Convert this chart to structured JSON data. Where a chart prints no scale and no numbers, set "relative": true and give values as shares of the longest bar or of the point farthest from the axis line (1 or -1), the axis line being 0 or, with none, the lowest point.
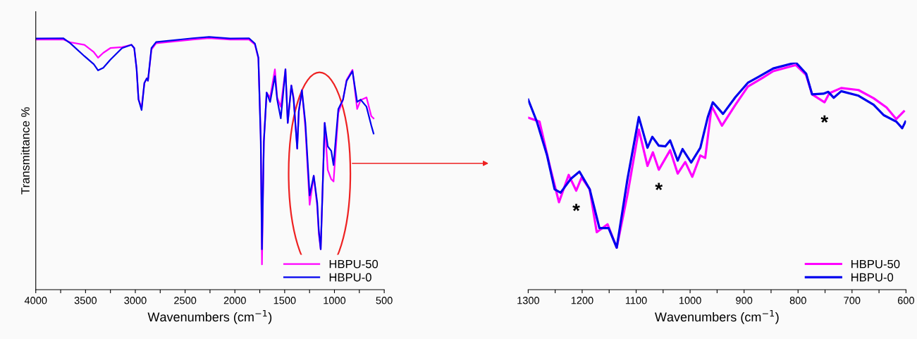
{
  "chart_data": [
    {
      "type": "line",
      "relative": true,
      "xlabel": "Wavenumbers (cm$^{−1}$)",
      "ylabel": "Transmittance %",
      "xlim": [
        4000,
        500
      ],
      "xticks": [
        4000,
        {
          "value": 3750,
          "label": null
        },
        3500,
        {
          "value": 3250,
          "label": null
        },
        3000,
        {
          "value": 2750,
          "label": null
        },
        2500,
        {
          "value": 2250,
          "label": null
        },
        2000,
        {
          "value": 1750,
          "label": null
        },
        1500,
        {
          "value": 1250,
          "label": null
        },
        1000,
        {
          "value": 750,
          "label": null
        },
        500
      ],
      "tick_labels": "x",
      "legend": "bottom right",
      "grid": false,
      "x": [
        3995,
        3724,
        3653,
        3511,
        3417,
        3374,
        3322,
        3251,
        3133,
        3039,
        3011,
        2987,
        2968,
        2937,
        2909,
        2885,
        2873,
        2838,
        2791,
        2425,
        2259,
        2047,
        1858,
        1799,
        1764,
        1740,
        1728,
        1709,
        1681,
        1646,
        1598,
        1575,
        1539,
        1492,
        1469,
        1433,
        1410,
        1374,
        1358,
        1327,
        1292,
        1249,
        1208,
        1173,
        1157,
        1138,
        1098,
        1067,
        1032,
        1009,
        961,
        914,
        878,
        819,
        772,
        737,
        678,
        630,
        607
      ],
      "series": [
        {
          "name": "HBPU-50",
          "color": "#ff00ff",
          "values": [
            0.99,
            0.99,
            0.979,
            0.969,
            0.94,
            0.918,
            0.937,
            0.956,
            0.96,
            0.969,
            0.956,
            0.873,
            0.753,
            0.72,
            0.818,
            0.836,
            0.827,
            0.95,
            0.975,
            0.99,
            0.995,
            0.99,
            0.99,
            0.97,
            0.915,
            0.61,
            0.1,
            0.586,
            0.78,
            0.76,
            0.872,
            0.76,
            0.724,
            0.872,
            0.66,
            0.808,
            0.76,
            0.558,
            0.706,
            0.79,
            0.64,
            0.336,
            0.451,
            0.33,
            0.22,
            0.16,
            0.66,
            0.474,
            0.437,
            0.428,
            0.7,
            0.752,
            0.83,
            0.87,
            0.715,
            0.75,
            0.761,
            0.687,
            0.678
          ]
        },
        {
          "name": "HBPU-0",
          "color": "#0000ee",
          "values": [
            0.994,
            0.995,
            0.975,
            0.924,
            0.892,
            0.868,
            0.878,
            0.91,
            0.956,
            0.969,
            0.956,
            0.873,
            0.753,
            0.711,
            0.818,
            0.836,
            0.827,
            0.956,
            0.98,
            0.995,
            1.0,
            0.994,
            0.995,
            0.974,
            0.919,
            0.586,
            0.16,
            0.586,
            0.78,
            0.743,
            0.845,
            0.752,
            0.678,
            0.872,
            0.66,
            0.808,
            0.752,
            0.558,
            0.706,
            0.789,
            0.66,
            0.373,
            0.451,
            0.345,
            0.234,
            0.16,
            0.66,
            0.567,
            0.549,
            0.493,
            0.715,
            0.752,
            0.826,
            0.865,
            0.743,
            0.752,
            0.724,
            0.65,
            0.618
          ]
        }
      ]
    },
    {
      "type": "line",
      "relative": true,
      "xlabel": "Wavenumbers (cm$^{−1}$)",
      "xlim": [
        1300,
        600
      ],
      "xticks": [
        1300,
        {
          "value": 1250,
          "label": null
        },
        1200,
        {
          "value": 1150,
          "label": null
        },
        1100,
        {
          "value": 1050,
          "label": null
        },
        1000,
        {
          "value": 950,
          "label": null
        },
        900,
        {
          "value": 850,
          "label": null
        },
        800,
        {
          "value": 750,
          "label": null
        },
        700,
        {
          "value": 650,
          "label": null
        },
        600
      ],
      "tick_labels": "x",
      "legend": "bottom right",
      "grid": false,
      "annotations": [
        {
          "text": "*",
          "x": 1211,
          "y": 0.436
        },
        {
          "text": "*",
          "x": 1058,
          "y": 0.528
        },
        {
          "text": "*",
          "x": 751,
          "y": 0.825
        }
      ],
      "series": [
        {
          "name": "HBPU-50",
          "color": "#ff00ff",
          "x": [
            1300,
            1279,
            1260,
            1243,
            1225,
            1211,
            1201,
            1186,
            1173,
            1153,
            1136,
            1116,
            1095,
            1079,
            1069,
            1058,
            1037,
            1023,
            1009,
            996,
            981,
            972,
            960,
            941,
            916,
            893,
            865,
            846,
            804,
            785,
            774,
            751,
            742,
            720,
            688,
            660,
            636,
            618,
            604
          ],
          "values": [
            0.757,
            0.74,
            0.545,
            0.385,
            0.505,
            0.436,
            0.494,
            0.442,
            0.253,
            0.288,
            0.185,
            0.419,
            0.705,
            0.545,
            0.605,
            0.528,
            0.614,
            0.511,
            0.562,
            0.497,
            0.591,
            0.58,
            0.808,
            0.722,
            0.814,
            0.894,
            0.934,
            0.962,
            0.989,
            0.945,
            0.86,
            0.825,
            0.865,
            0.888,
            0.879,
            0.843,
            0.802,
            0.751,
            0.785
          ]
        },
        {
          "name": "HBPU-0",
          "color": "#0000ee",
          "x": [
            1300,
            1284,
            1265,
            1251,
            1240,
            1221,
            1205,
            1186,
            1168,
            1151,
            1136,
            1116,
            1095,
            1079,
            1070,
            1058,
            1046,
            1037,
            1023,
            1014,
            998,
            981,
            967,
            958,
            939,
            916,
            893,
            874,
            846,
            804,
            785,
            774,
            753,
            744,
            734,
            720,
            688,
            660,
            641,
            618,
            607,
            601
          ],
          "values": [
            0.837,
            0.74,
            0.591,
            0.442,
            0.427,
            0.488,
            0.52,
            0.442,
            0.271,
            0.271,
            0.185,
            0.488,
            0.76,
            0.625,
            0.673,
            0.634,
            0.631,
            0.657,
            0.568,
            0.619,
            0.56,
            0.625,
            0.762,
            0.825,
            0.774,
            0.848,
            0.911,
            0.936,
            0.974,
            1.0,
            0.951,
            0.86,
            0.863,
            0.871,
            0.845,
            0.874,
            0.854,
            0.814,
            0.768,
            0.74,
            0.711,
            0.74
          ]
        }
      ]
    }
  ]
}
